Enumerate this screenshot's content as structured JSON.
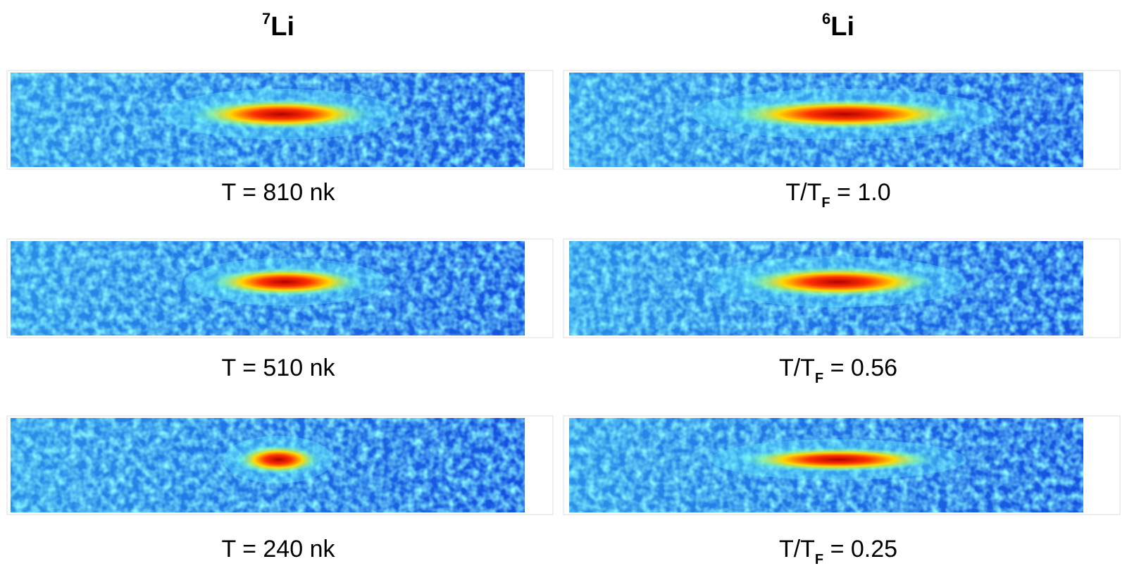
{
  "columns": [
    {
      "header": {
        "mass": "7",
        "symbol": "Li"
      },
      "labels": [
        "T = 810 nk",
        "T = 510 nk",
        "T = 240 nk"
      ]
    },
    {
      "header": {
        "mass": "6",
        "symbol": "Li"
      },
      "labels": [
        {
          "prefix": "T/T",
          "subscript": "F",
          "suffix": " = 1.0"
        },
        {
          "prefix": "T/T",
          "subscript": "F",
          "suffix": " = 0.56"
        },
        {
          "prefix": "T/T",
          "subscript": "F",
          "suffix": " = 0.25"
        }
      ]
    }
  ]
}
